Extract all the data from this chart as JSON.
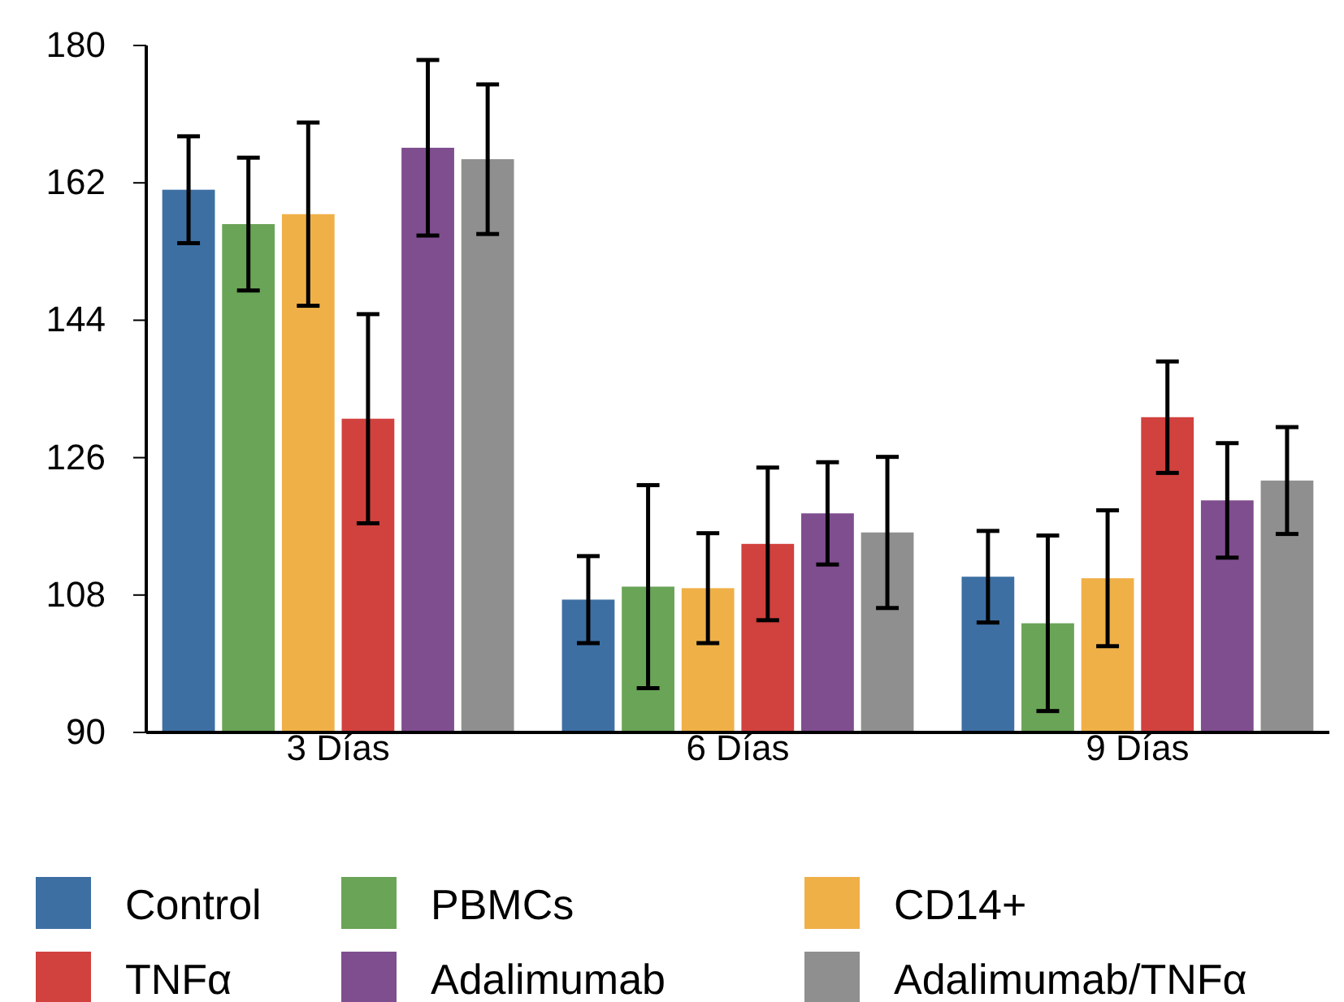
{
  "chart_data": {
    "type": "bar",
    "categories": [
      "3 Días",
      "6 Días",
      "9 Días"
    ],
    "series": [
      {
        "name": "Control",
        "color": "#3d6fa3",
        "values": [
          161.1,
          107.4,
          110.4
        ],
        "errors": [
          7,
          5.7,
          6
        ]
      },
      {
        "name": "PBMCs",
        "color": "#6aa457",
        "values": [
          156.6,
          109.1,
          104.3
        ],
        "errors": [
          8.7,
          13.3,
          11.5
        ]
      },
      {
        "name": "CD14+",
        "color": "#f0b048",
        "values": [
          157.9,
          108.9,
          110.2
        ],
        "errors": [
          12,
          7.2,
          8.9
        ]
      },
      {
        "name": "TNFα",
        "color": "#d1413e",
        "values": [
          131.1,
          114.7,
          131.3
        ],
        "errors": [
          13.7,
          10,
          7.3
        ]
      },
      {
        "name": "Adalimumab",
        "color": "#7f4e8f",
        "values": [
          166.6,
          118.7,
          120.4
        ],
        "errors": [
          11.5,
          6.7,
          7.5
        ]
      },
      {
        "name": "Adalimumab/TNFα",
        "color": "#8f8f8f",
        "values": [
          165.1,
          116.2,
          123
        ],
        "errors": [
          9.8,
          9.9,
          7
        ]
      }
    ],
    "ylim": [
      90,
      180
    ],
    "yticks": [
      90,
      108,
      126,
      144,
      162,
      180
    ],
    "grid": false,
    "legend": "bottom"
  }
}
